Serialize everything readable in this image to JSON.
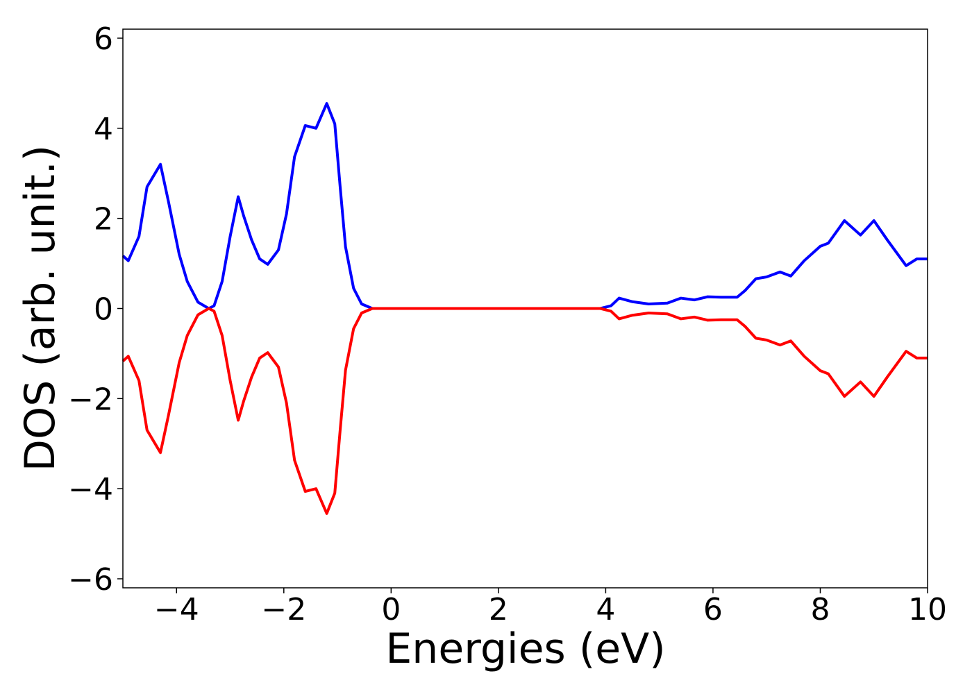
{
  "chart_data": {
    "type": "line",
    "x_label": "Energies (eV)",
    "y_label": "DOS (arb. unit.)",
    "x": [
      -5,
      -4.9,
      -4.7,
      -4.55,
      -4.3,
      -4.15,
      -3.95,
      -3.8,
      -3.6,
      -3.4,
      -3.3,
      -3.15,
      -3.0,
      -2.85,
      -2.75,
      -2.6,
      -2.45,
      -2.3,
      -2.1,
      -1.95,
      -1.8,
      -1.6,
      -1.4,
      -1.2,
      -1.05,
      -0.95,
      -0.85,
      -0.7,
      -0.55,
      -0.35,
      0,
      2,
      3.9,
      4.1,
      4.25,
      4.5,
      4.8,
      5.15,
      5.4,
      5.65,
      5.9,
      6.15,
      6.45,
      6.6,
      6.8,
      7.0,
      7.25,
      7.45,
      7.7,
      8.0,
      8.15,
      8.45,
      8.75,
      9.0,
      9.25,
      9.6,
      9.8,
      10
    ],
    "series": [
      {
        "color": "#0000ff",
        "values": [
          1.17,
          1.06,
          1.6,
          2.7,
          3.2,
          2.37,
          1.2,
          0.6,
          0.14,
          0,
          0.06,
          0.6,
          1.6,
          2.48,
          2.06,
          1.52,
          1.1,
          0.98,
          1.3,
          2.1,
          3.37,
          4.06,
          4.0,
          4.55,
          4.1,
          2.7,
          1.37,
          0.45,
          0.1,
          0,
          0,
          0,
          0,
          0.06,
          0.23,
          0.15,
          0.1,
          0.12,
          0.23,
          0.19,
          0.26,
          0.25,
          0.25,
          0.4,
          0.66,
          0.7,
          0.81,
          0.72,
          1.06,
          1.38,
          1.45,
          1.95,
          1.63,
          1.95,
          1.52,
          0.95,
          1.1,
          1.1
        ]
      },
      {
        "color": "#ff0000",
        "values": [
          -1.17,
          -1.06,
          -1.6,
          -2.7,
          -3.2,
          -2.37,
          -1.2,
          -0.6,
          -0.14,
          0,
          -0.06,
          -0.6,
          -1.6,
          -2.48,
          -2.06,
          -1.52,
          -1.1,
          -0.98,
          -1.3,
          -2.1,
          -3.37,
          -4.06,
          -4.0,
          -4.55,
          -4.1,
          -2.7,
          -1.37,
          -0.45,
          -0.1,
          0,
          0,
          0,
          0,
          -0.06,
          -0.23,
          -0.15,
          -0.1,
          -0.12,
          -0.23,
          -0.19,
          -0.26,
          -0.25,
          -0.25,
          -0.4,
          -0.66,
          -0.7,
          -0.81,
          -0.72,
          -1.06,
          -1.38,
          -1.45,
          -1.95,
          -1.63,
          -1.95,
          -1.52,
          -0.95,
          -1.1,
          -1.1
        ]
      }
    ],
    "xlim": [
      -5,
      10
    ],
    "xticks": [
      {
        "value": -4,
        "label": "−4"
      },
      {
        "value": -2,
        "label": "−2"
      },
      0,
      2,
      4,
      6,
      8,
      10
    ],
    "ylim": [
      -6.2,
      6.2
    ],
    "yticks": [
      {
        "value": -6,
        "label": "−6"
      },
      {
        "value": -4,
        "label": "−4"
      },
      {
        "value": -2,
        "label": "−2"
      },
      0,
      2,
      4,
      6
    ]
  }
}
